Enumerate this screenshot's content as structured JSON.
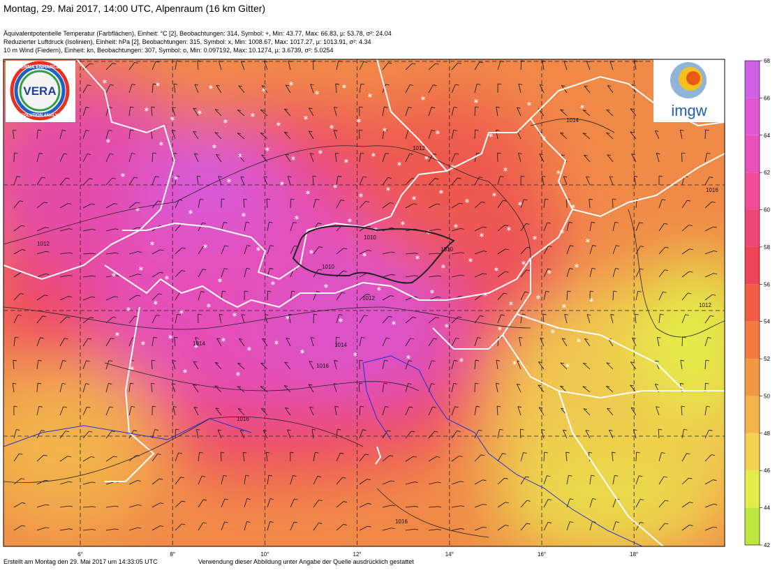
{
  "header": {
    "title": "Montag, 29. Mai 2017, 14:00 UTC, Alpenraum (16 km Gitter)",
    "lines": [
      "Äquivalentpotentielle Temperatur (Farbflächen), Einheit: °C [2], Beobachtungen: 314, Symbol: +, Min: 43.77, Max: 66.83, µ: 53.78, σ²: 24.04",
      "Reduzierter Luftdruck (Isolinien), Einheit: hPa [2], Beobachtungen: 315, Symbol: x, Min: 1008.67, Max: 1017.27, µ: 1013.91, σ²: 4.34",
      "10 m Wind (Fiedern), Einheit: kn, Beobachtungen: 307, Symbol: o, Min: 0.097192, Max: 10.1274, µ: 3.6739, σ²: 5.0254"
    ]
  },
  "logos": {
    "vera_top": "VIENNA ENHANCED",
    "vera_mid": "VERA",
    "vera_bottom": "RESOLUTION ANALYSIS",
    "imgw": "imgw"
  },
  "map": {
    "longitudes": [
      "6°",
      "8°",
      "10°",
      "12°",
      "14°",
      "16°",
      "18°"
    ],
    "isobar_labels": [
      1010,
      1010,
      1010,
      1012,
      1012,
      1012,
      1012,
      1014,
      1014,
      1014,
      1016,
      1016,
      1016,
      1016
    ]
  },
  "colorbar": {
    "range": [
      42,
      68
    ],
    "ticks": [
      42,
      44,
      46,
      48,
      50,
      52,
      54,
      56,
      58,
      60,
      62,
      64,
      66,
      68
    ],
    "colors": [
      "#bde640",
      "#e4ec48",
      "#f2d250",
      "#f2b24c",
      "#f29844",
      "#f27c40",
      "#f05c44",
      "#ee4458",
      "#ef4676",
      "#f04c98",
      "#e851bc",
      "#de58d6",
      "#cf62e4"
    ]
  },
  "footer": {
    "created": "Erstellt am Montag den 29. Mai 2017 um 14:33:05 UTC",
    "usage": "Verwendung dieser Abbildung unter Angabe der Quelle ausdrücklich gestattet"
  }
}
